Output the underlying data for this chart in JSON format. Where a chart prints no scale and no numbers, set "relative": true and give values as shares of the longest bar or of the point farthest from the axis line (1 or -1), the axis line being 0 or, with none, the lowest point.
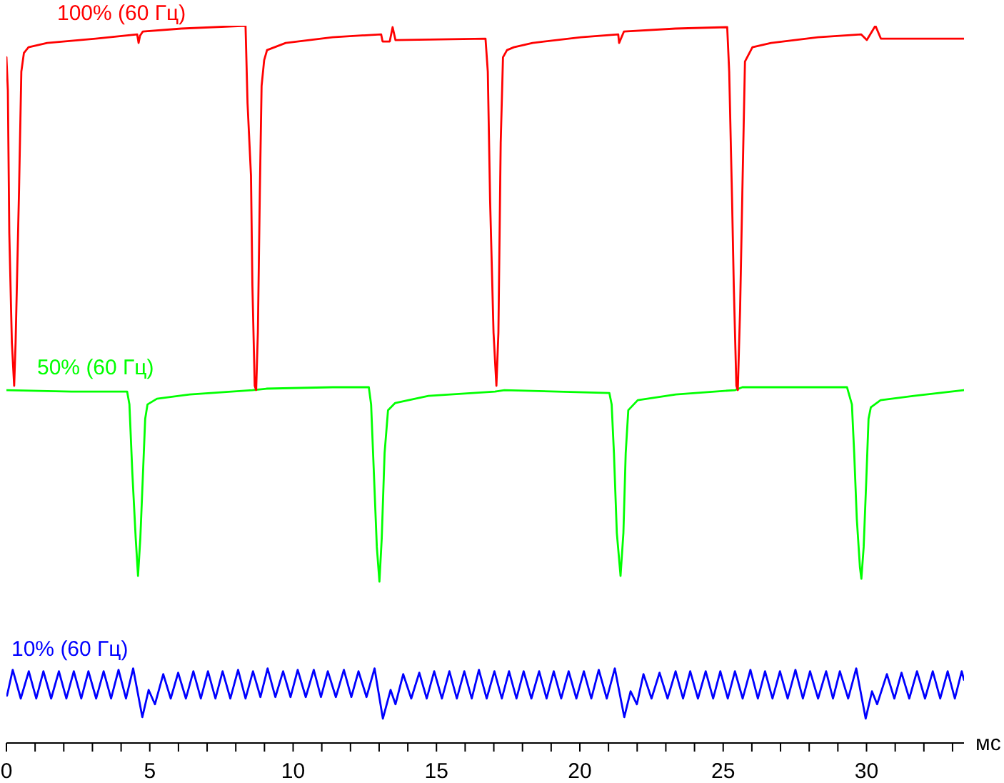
{
  "chart_data": {
    "type": "line",
    "xlabel": "мс",
    "relative": true,
    "xlim": [
      0,
      33.4
    ],
    "xticks": [
      0,
      {
        "value": 1,
        "label": null
      },
      {
        "value": 2,
        "label": null
      },
      {
        "value": 3,
        "label": null
      },
      {
        "value": 4,
        "label": null
      },
      5,
      {
        "value": 6,
        "label": null
      },
      {
        "value": 7,
        "label": null
      },
      {
        "value": 8,
        "label": null
      },
      {
        "value": 9,
        "label": null
      },
      10,
      {
        "value": 11,
        "label": null
      },
      {
        "value": 12,
        "label": null
      },
      {
        "value": 13,
        "label": null
      },
      {
        "value": 14,
        "label": null
      },
      15,
      {
        "value": 16,
        "label": null
      },
      {
        "value": 17,
        "label": null
      },
      {
        "value": 18,
        "label": null
      },
      {
        "value": 19,
        "label": null
      },
      20,
      {
        "value": 21,
        "label": null
      },
      {
        "value": 22,
        "label": null
      },
      {
        "value": 23,
        "label": null
      },
      {
        "value": 24,
        "label": null
      },
      25,
      {
        "value": 26,
        "label": null
      },
      {
        "value": 27,
        "label": null
      },
      {
        "value": 28,
        "label": null
      },
      {
        "value": 29,
        "label": null
      },
      30,
      {
        "value": 31,
        "label": null
      },
      {
        "value": 32,
        "label": null
      },
      {
        "value": 33,
        "label": null
      }
    ],
    "series": [
      {
        "name": "100% (60 Гц)",
        "color": "#ff0000",
        "x": [
          0,
          0.05,
          0.1,
          0.19,
          0.27,
          0.32,
          0.44,
          0.52,
          0.61,
          0.77,
          1.42,
          3.11,
          4.56,
          4.61,
          4.66,
          4.76,
          6.1,
          8.34,
          8.41,
          8.53,
          8.58,
          8.66,
          8.71,
          8.77,
          8.84,
          8.9,
          8.99,
          9.09,
          9.74,
          11.38,
          13.07,
          13.12,
          13.37,
          13.47,
          13.57,
          16.71,
          16.79,
          16.87,
          16.99,
          17.09,
          17.16,
          17.24,
          17.32,
          17.46,
          17.7,
          18.35,
          20.04,
          21.34,
          21.37,
          21.54,
          23.33,
          25.14,
          25.21,
          25.31,
          25.37,
          25.46,
          25.51,
          25.59,
          25.67,
          25.76,
          26.02,
          26.67,
          28.31,
          29.81,
          30.01,
          30.31,
          30.5,
          33.4
        ],
        "values": [
          0.956,
          0.91,
          0.711,
          0.558,
          0.498,
          0.558,
          0.771,
          0.936,
          0.962,
          0.97,
          0.976,
          0.982,
          0.988,
          0.976,
          0.986,
          0.992,
          0.996,
          1.0,
          0.892,
          0.791,
          0.637,
          0.498,
          0.492,
          0.572,
          0.771,
          0.916,
          0.952,
          0.966,
          0.976,
          0.984,
          0.988,
          0.978,
          0.978,
          0.998,
          0.98,
          0.982,
          0.936,
          0.757,
          0.572,
          0.498,
          0.572,
          0.837,
          0.956,
          0.966,
          0.97,
          0.976,
          0.984,
          0.988,
          0.976,
          0.992,
          0.996,
          0.998,
          0.936,
          0.757,
          0.637,
          0.498,
          0.492,
          0.604,
          0.771,
          0.95,
          0.97,
          0.976,
          0.984,
          0.988,
          0.98,
          1.0,
          0.982,
          0.982
        ]
      },
      {
        "name": "50% (60 Гц)",
        "color": "#00ff00",
        "x": [
          0,
          2.27,
          4.21,
          4.29,
          4.39,
          4.51,
          4.59,
          4.67,
          4.76,
          4.84,
          4.92,
          5.25,
          6.4,
          8.58,
          9.07,
          11.38,
          12.64,
          12.72,
          12.82,
          12.92,
          13.01,
          13.09,
          13.19,
          13.31,
          13.56,
          14.72,
          17.04,
          17.37,
          21.03,
          21.11,
          21.19,
          21.29,
          21.42,
          21.52,
          21.6,
          21.69,
          22.02,
          23.35,
          25.42,
          25.67,
          29.32,
          29.49,
          29.57,
          29.66,
          29.77,
          29.82,
          29.9,
          29.99,
          30.07,
          30.15,
          30.49,
          31.65,
          33.39
        ],
        "values": [
          0.492,
          0.49,
          0.49,
          0.472,
          0.378,
          0.285,
          0.233,
          0.285,
          0.373,
          0.452,
          0.472,
          0.48,
          0.486,
          0.492,
          0.494,
          0.496,
          0.496,
          0.472,
          0.373,
          0.273,
          0.225,
          0.285,
          0.404,
          0.464,
          0.474,
          0.484,
          0.49,
          0.492,
          0.488,
          0.472,
          0.404,
          0.293,
          0.233,
          0.293,
          0.404,
          0.464,
          0.478,
          0.486,
          0.492,
          0.496,
          0.496,
          0.472,
          0.404,
          0.313,
          0.245,
          0.229,
          0.273,
          0.365,
          0.452,
          0.468,
          0.478,
          0.484,
          0.492
        ]
      },
      {
        "name": "10% (60 Гц)",
        "color": "#0000ff",
        "x": [
          0.02,
          0.22,
          0.5,
          0.78,
          1.04,
          1.29,
          1.56,
          1.83,
          2.09,
          2.35,
          2.61,
          2.86,
          3.13,
          3.39,
          3.65,
          3.91,
          4.17,
          4.42,
          4.74,
          4.96,
          5.18,
          5.47,
          5.73,
          5.99,
          6.26,
          6.52,
          6.78,
          7.03,
          7.29,
          7.54,
          7.81,
          8.08,
          8.34,
          8.6,
          8.86,
          9.11,
          9.38,
          9.65,
          9.91,
          10.16,
          10.44,
          10.72,
          10.97,
          11.21,
          11.49,
          11.77,
          12.03,
          12.28,
          12.56,
          12.84,
          13.13,
          13.4,
          13.57,
          13.84,
          14.12,
          14.4,
          14.66,
          14.92,
          15.19,
          15.45,
          15.71,
          15.97,
          16.23,
          16.48,
          16.75,
          17.02,
          17.28,
          17.53,
          17.79,
          18.04,
          18.31,
          18.58,
          18.84,
          19.09,
          19.35,
          19.61,
          19.88,
          20.14,
          20.4,
          20.66,
          20.94,
          21.22,
          21.55,
          21.77,
          21.99,
          22.22,
          22.5,
          22.78,
          23.06,
          23.34,
          23.6,
          23.85,
          24.12,
          24.39,
          24.65,
          24.9,
          25.16,
          25.41,
          25.68,
          25.95,
          26.21,
          26.46,
          26.72,
          26.98,
          27.25,
          27.52,
          27.78,
          28.03,
          28.31,
          28.59,
          28.83,
          29.07,
          29.36,
          29.64,
          29.97,
          30.19,
          30.37,
          30.71,
          30.97,
          31.22,
          31.49,
          31.76,
          32.04,
          32.31,
          32.57,
          32.83,
          33.08,
          33.32,
          33.4
        ],
        "values": [
          0.066,
          0.102,
          0.062,
          0.1,
          0.062,
          0.1,
          0.062,
          0.1,
          0.062,
          0.1,
          0.062,
          0.1,
          0.062,
          0.1,
          0.062,
          0.102,
          0.062,
          0.104,
          0.036,
          0.074,
          0.054,
          0.096,
          0.062,
          0.098,
          0.062,
          0.1,
          0.062,
          0.1,
          0.062,
          0.1,
          0.062,
          0.102,
          0.062,
          0.1,
          0.064,
          0.104,
          0.064,
          0.1,
          0.064,
          0.102,
          0.064,
          0.102,
          0.064,
          0.1,
          0.064,
          0.102,
          0.064,
          0.1,
          0.064,
          0.104,
          0.034,
          0.074,
          0.054,
          0.096,
          0.062,
          0.098,
          0.062,
          0.1,
          0.062,
          0.1,
          0.062,
          0.1,
          0.062,
          0.102,
          0.062,
          0.1,
          0.062,
          0.1,
          0.062,
          0.1,
          0.062,
          0.1,
          0.062,
          0.1,
          0.062,
          0.1,
          0.062,
          0.1,
          0.062,
          0.102,
          0.062,
          0.104,
          0.036,
          0.072,
          0.054,
          0.096,
          0.062,
          0.098,
          0.062,
          0.1,
          0.062,
          0.1,
          0.062,
          0.1,
          0.062,
          0.1,
          0.062,
          0.1,
          0.062,
          0.102,
          0.062,
          0.1,
          0.062,
          0.1,
          0.062,
          0.102,
          0.062,
          0.1,
          0.062,
          0.1,
          0.062,
          0.1,
          0.062,
          0.104,
          0.034,
          0.072,
          0.054,
          0.096,
          0.062,
          0.098,
          0.062,
          0.1,
          0.062,
          0.1,
          0.062,
          0.1,
          0.062,
          0.1,
          0.088
        ]
      }
    ]
  }
}
